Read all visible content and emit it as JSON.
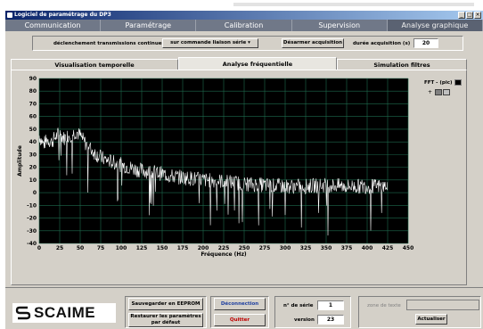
{
  "window": {
    "title": "Logiciel de paramétrage du DP3"
  },
  "main_tabs": [
    {
      "label": "Communication"
    },
    {
      "label": "Paramétrage"
    },
    {
      "label": "Calibration"
    },
    {
      "label": "Supervision"
    },
    {
      "label": "Analyse graphique"
    }
  ],
  "controls": {
    "transmission_label": "déclenchement transmissions continues",
    "transmission_value": "sur commande liaison série",
    "acquisition_button": "Désarmer acquisition",
    "duration_label": "durée acquisition (s)",
    "duration_value": "20"
  },
  "sub_tabs": [
    {
      "label": "Visualisation temporelle"
    },
    {
      "label": "Analyse fréquentielle"
    },
    {
      "label": "Simulation filtres"
    }
  ],
  "legend": {
    "series_label": "FFT - (pic)"
  },
  "footer": {
    "brand": "SCAIME",
    "save_button": "Sauvegarder en EEPROM",
    "restore_button_line1": "Restaurer les paramètres",
    "restore_button_line2": "par défaut",
    "disconnect_button": "Déconnection",
    "quit_button": "Quitter",
    "serial_label": "n° de série",
    "serial_value": "1",
    "version_label": "version",
    "version_value": "23",
    "text_zone_label": "zone de texte",
    "refresh_button": "Actualiser"
  },
  "colors": {
    "plot_bg": "#000000",
    "grid": "#1e6a4e",
    "trace": "#ffffff",
    "tab_bar": "#707888"
  },
  "chart_data": {
    "type": "line",
    "xlabel": "Fréquence (Hz)",
    "ylabel": "Amplitude",
    "xlim": [
      0,
      450
    ],
    "ylim": [
      -40,
      90
    ],
    "xticks": [
      0,
      25,
      50,
      75,
      100,
      125,
      150,
      175,
      200,
      225,
      250,
      275,
      300,
      325,
      350,
      375,
      400,
      425,
      450
    ],
    "yticks": [
      90,
      80,
      70,
      60,
      50,
      40,
      30,
      20,
      10,
      0,
      -10,
      -20,
      -30,
      -40
    ],
    "grid": true,
    "series": [
      {
        "name": "FFT - (pic)",
        "x": [
          0,
          5,
          10,
          15,
          20,
          25,
          30,
          35,
          40,
          45,
          50,
          55,
          60,
          65,
          70,
          75,
          80,
          90,
          100,
          110,
          120,
          130,
          140,
          150,
          160,
          175,
          190,
          200,
          225,
          250,
          275,
          300,
          325,
          350,
          375,
          400,
          425
        ],
        "y": [
          45,
          38,
          42,
          40,
          44,
          47,
          43,
          45,
          46,
          48,
          45,
          40,
          36,
          33,
          30,
          28,
          26,
          24,
          22,
          20,
          18,
          17,
          16,
          15,
          13,
          12,
          11,
          10,
          9,
          7,
          6,
          5,
          5,
          6,
          5,
          5,
          5
        ]
      }
    ]
  }
}
